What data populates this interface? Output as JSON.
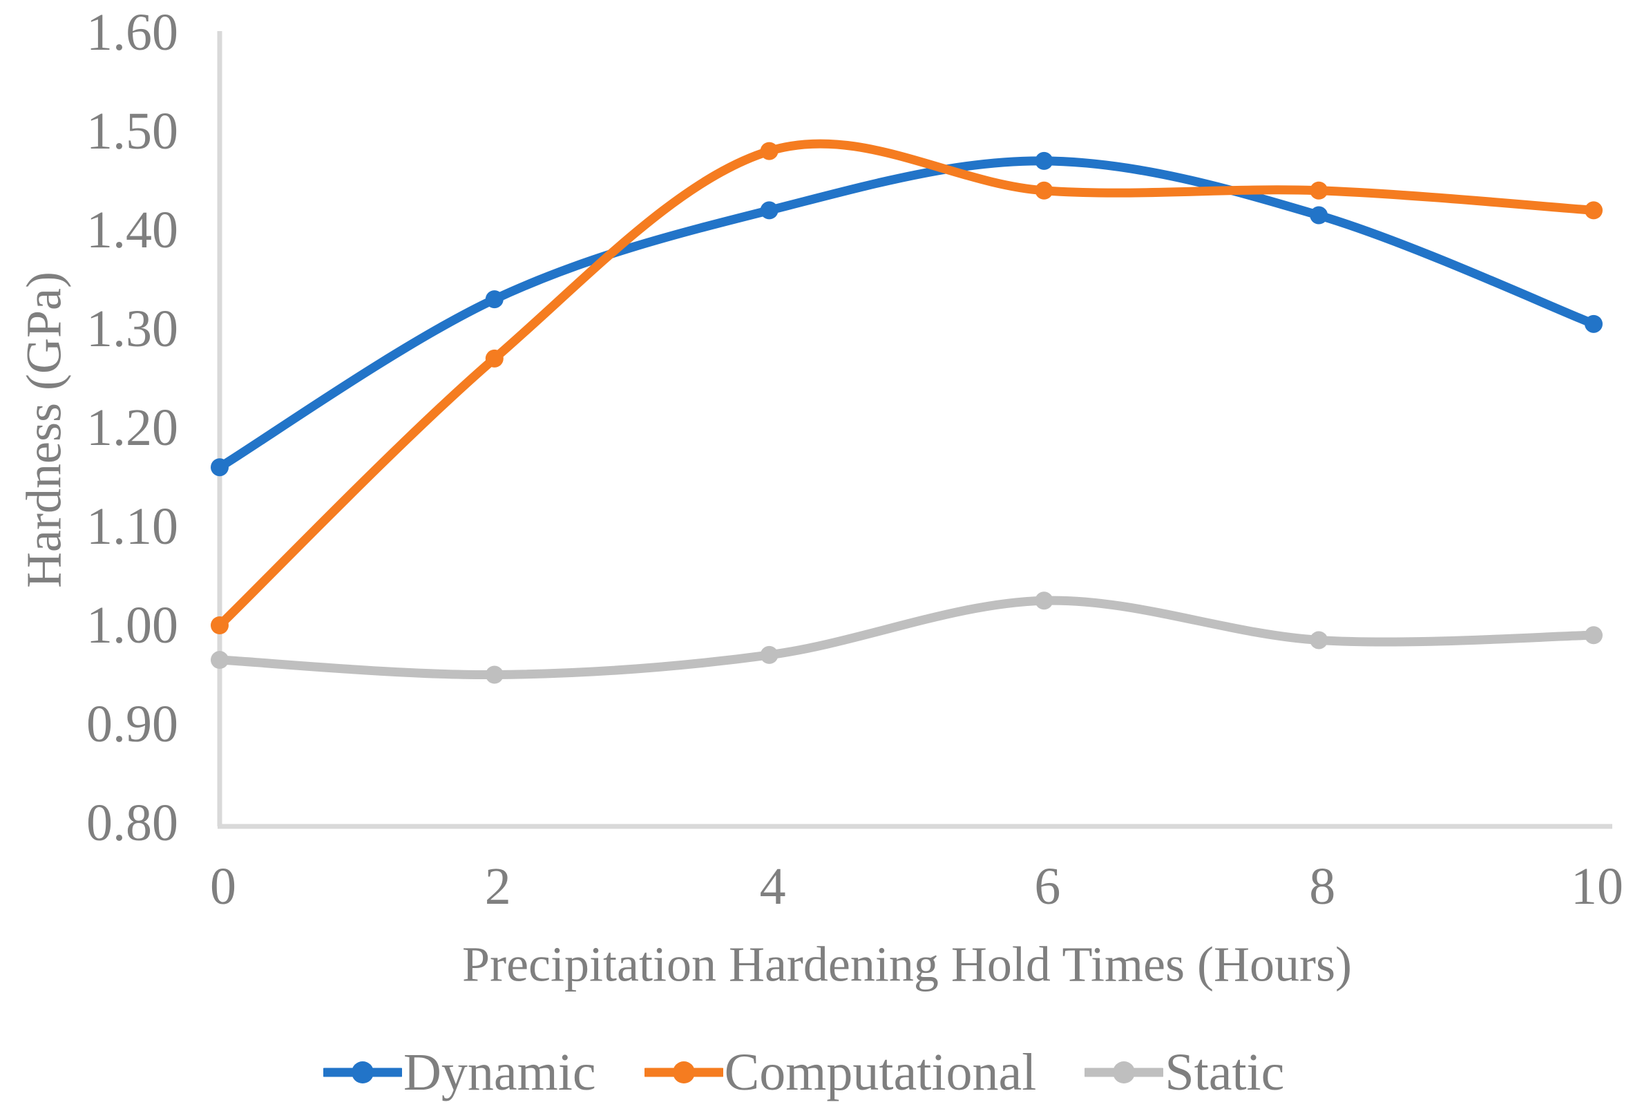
{
  "chart_data": {
    "type": "line",
    "x": [
      0,
      2,
      4,
      6,
      8,
      10
    ],
    "xtick_labels": [
      "0",
      "2",
      "4",
      "6",
      "8",
      "10"
    ],
    "ytick_labels": [
      "0.80",
      "0.90",
      "1.00",
      "1.10",
      "1.20",
      "1.30",
      "1.40",
      "1.50",
      "1.60"
    ],
    "xlim": [
      0,
      10
    ],
    "ylim": [
      0.8,
      1.6
    ],
    "ytick_step": 0.1,
    "xlabel": "Precipitation Hardening Hold Times (Hours)",
    "ylabel": "Hardness (GPa)",
    "title": "",
    "grid": false,
    "smooth": true,
    "legend_position": "bottom",
    "axis_color": "#D9D9D9",
    "text_color": "#7F7F7F",
    "series": [
      {
        "name": "Dynamic",
        "color": "#2274C8",
        "values": [
          1.16,
          1.33,
          1.42,
          1.47,
          1.415,
          1.305
        ]
      },
      {
        "name": "Computational",
        "color": "#F57C20",
        "values": [
          1.0,
          1.27,
          1.48,
          1.44,
          1.44,
          1.42
        ]
      },
      {
        "name": "Static",
        "color": "#BFBFBF",
        "values": [
          0.965,
          0.95,
          0.97,
          1.025,
          0.985,
          0.99
        ]
      }
    ]
  }
}
